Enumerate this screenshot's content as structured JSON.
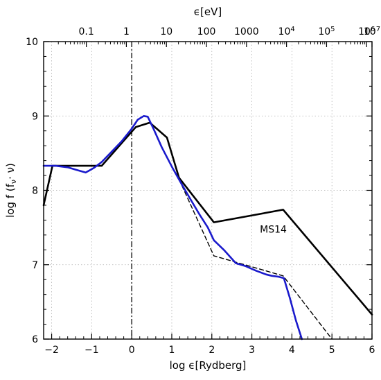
{
  "chart_data": {
    "type": "line",
    "xlabel": "log ϵ[Rydberg]",
    "ylabel": "log f (f",
    "ylabel_sub": "ν",
    "ylabel_tail": "· ν)",
    "top_xlabel": "ϵ[eV]",
    "xlim": [
      -2.2,
      6.0
    ],
    "ylim": [
      6,
      10
    ],
    "grid": true,
    "x_ticks": [
      -2,
      -1,
      0,
      1,
      2,
      3,
      4,
      5,
      6
    ],
    "x_tick_labels": [
      "−2",
      "−1",
      "0",
      "1",
      "2",
      "3",
      "4",
      "5",
      "6"
    ],
    "y_ticks": [
      6,
      7,
      8,
      9,
      10
    ],
    "y_tick_labels": [
      "6",
      "7",
      "8",
      "9",
      "10"
    ],
    "top_ticks": [
      {
        "x": -1.134,
        "label": "0.1"
      },
      {
        "x": -0.134,
        "label": "1"
      },
      {
        "x": 0.866,
        "label": "10"
      },
      {
        "x": 1.866,
        "label": "100"
      },
      {
        "x": 2.866,
        "label": "1000"
      },
      {
        "x": 3.866,
        "label": "10",
        "sup": "4"
      },
      {
        "x": 4.866,
        "label": "10",
        "sup": "5"
      },
      {
        "x": 5.866,
        "label": "10",
        "sup": "6"
      },
      {
        "x": 6.0,
        "label": "10",
        "sup": "7"
      }
    ],
    "vertical_line": {
      "x": 0,
      "style": "dash-dot",
      "color": "#000000"
    },
    "annotations": [
      {
        "text": "MS14",
        "x": 3.2,
        "y": 7.48
      }
    ],
    "series": [
      {
        "color": "#000000",
        "style": "solid",
        "width": 2.6,
        "x": [
          -2.2,
          -1.98,
          -0.75,
          0.1,
          0.45,
          0.88,
          1.18,
          2.05,
          3.78,
          6.0
        ],
        "y": [
          7.8,
          8.33,
          8.33,
          8.85,
          8.91,
          8.71,
          8.17,
          7.57,
          7.74,
          6.33
        ]
      },
      {
        "color": "#000000",
        "style": "dashed",
        "width": 1.4,
        "x": [
          1.18,
          2.05,
          3.78,
          5.0
        ],
        "y": [
          8.15,
          7.12,
          6.85,
          6.0
        ]
      },
      {
        "color": "#1a1acc",
        "style": "solid",
        "width": 2.6,
        "x": [
          -2.2,
          -1.9,
          -1.6,
          -1.35,
          -1.15,
          -0.95,
          -0.75,
          -0.5,
          -0.25,
          0.0,
          0.15,
          0.3,
          0.4,
          0.55,
          0.75,
          1.0,
          1.25,
          1.5,
          1.7,
          1.9,
          2.05,
          2.3,
          2.6,
          2.85,
          3.1,
          3.35,
          3.5,
          3.65,
          3.8,
          3.95,
          4.1,
          4.25
        ],
        "y": [
          8.33,
          8.33,
          8.31,
          8.27,
          8.24,
          8.3,
          8.38,
          8.52,
          8.66,
          8.83,
          8.95,
          9.0,
          8.99,
          8.82,
          8.58,
          8.32,
          8.08,
          7.85,
          7.67,
          7.5,
          7.33,
          7.2,
          7.02,
          6.98,
          6.92,
          6.87,
          6.85,
          6.84,
          6.82,
          6.55,
          6.25,
          6.0
        ]
      }
    ]
  }
}
